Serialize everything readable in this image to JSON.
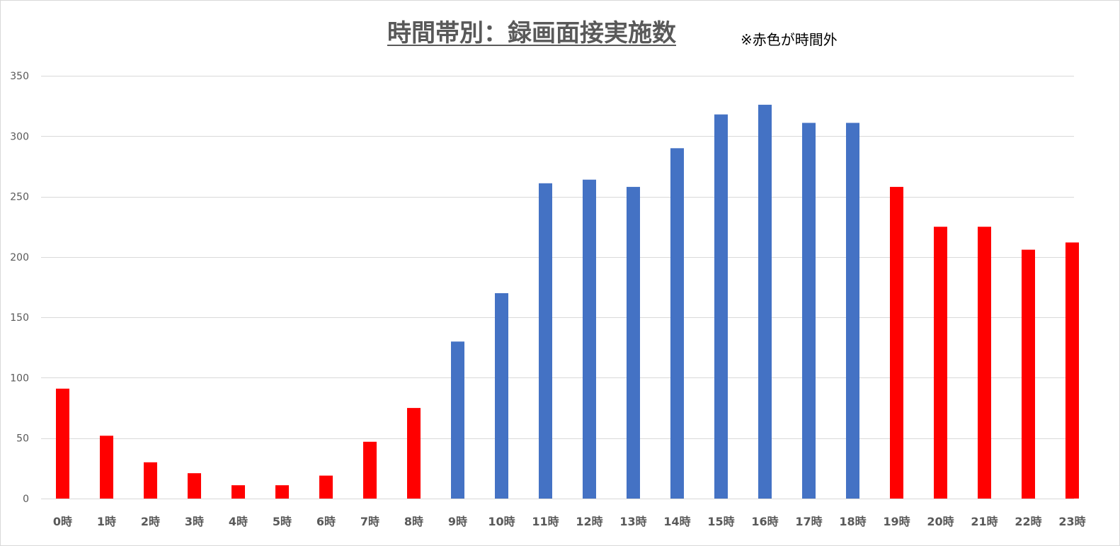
{
  "chart_data": {
    "type": "bar",
    "title": "時間帯別：録画面接実施数",
    "note": "※赤色が時間外",
    "xlabel": "",
    "ylabel": "",
    "ylim": [
      0,
      350
    ],
    "yticks": [
      0,
      50,
      100,
      150,
      200,
      250,
      300,
      350
    ],
    "grid": true,
    "legend": "none",
    "categories": [
      "0時",
      "1時",
      "2時",
      "3時",
      "4時",
      "5時",
      "6時",
      "7時",
      "8時",
      "9時",
      "10時",
      "11時",
      "12時",
      "13時",
      "14時",
      "15時",
      "16時",
      "17時",
      "18時",
      "19時",
      "20時",
      "21時",
      "22時",
      "23時"
    ],
    "values": [
      91,
      52,
      30,
      21,
      11,
      11,
      19,
      47,
      75,
      130,
      170,
      261,
      264,
      258,
      290,
      318,
      326,
      311,
      311,
      258,
      225,
      225,
      206,
      212
    ],
    "out_of_hours": [
      true,
      true,
      true,
      true,
      true,
      true,
      true,
      true,
      true,
      false,
      false,
      false,
      false,
      false,
      false,
      false,
      false,
      false,
      false,
      true,
      true,
      true,
      true,
      true
    ],
    "colors": {
      "out_of_hours": "#ff0000",
      "business_hours": "#4472c4",
      "gridline": "#d9d9d9",
      "tick_text": "#595959"
    }
  }
}
